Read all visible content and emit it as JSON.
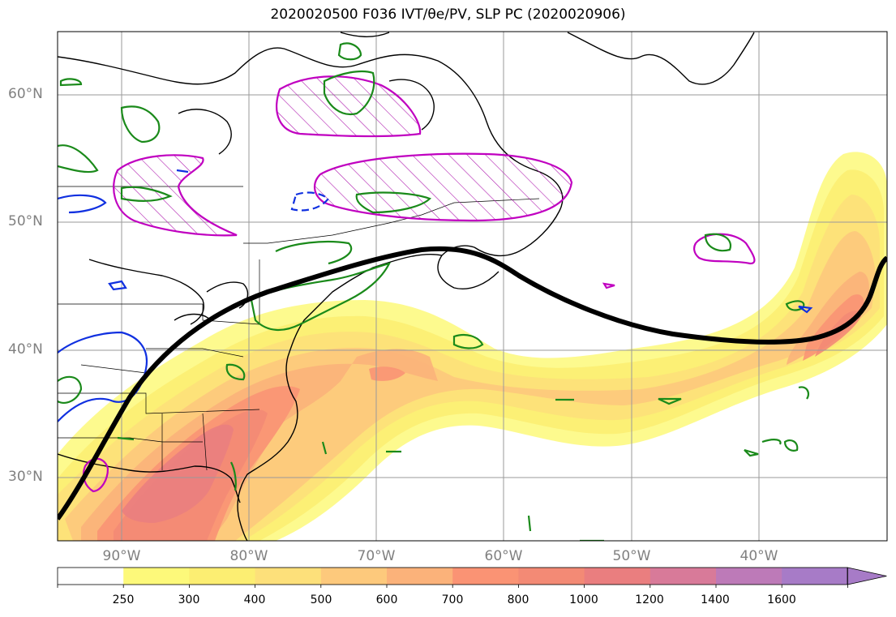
{
  "title": "2020020500 F036 IVT/θe/PV, SLP PC (2020020906)",
  "lat_labels": [
    "60°N",
    "50°N",
    "40°N",
    "30°N"
  ],
  "lon_labels": [
    "90°W",
    "80°W",
    "70°W",
    "60°W",
    "50°W",
    "40°W"
  ],
  "colorbar": {
    "ticks": [
      "250",
      "300",
      "400",
      "500",
      "600",
      "700",
      "800",
      "1000",
      "1200",
      "1400",
      "1600"
    ],
    "colors": [
      "#ffffff",
      "#fdf97a",
      "#fcee72",
      "#fde07a",
      "#fdc97c",
      "#fbb27a",
      "#fa9374",
      "#f38a75",
      "#ea7e7f",
      "#d87a99",
      "#bd7ab8",
      "#a77bc7"
    ],
    "extend": "max"
  },
  "map": {
    "lon_range": [
      -95,
      -30
    ],
    "lat_range": [
      25,
      65
    ],
    "gridlines": true,
    "fields": [
      "IVT",
      "θe",
      "PV",
      "SLP PC"
    ],
    "ivt_fill_palette": [
      "#fdf97a",
      "#fcee72",
      "#fde07a",
      "#fdc97c",
      "#fbb27a",
      "#fa9374",
      "#f38a75",
      "#ea7e7f"
    ],
    "slp_pc_line_color": "#000000",
    "pv_contour_color": "#c000c0",
    "theta_e_contour_colors": [
      "#1a8a1a",
      "#1030e0"
    ]
  }
}
